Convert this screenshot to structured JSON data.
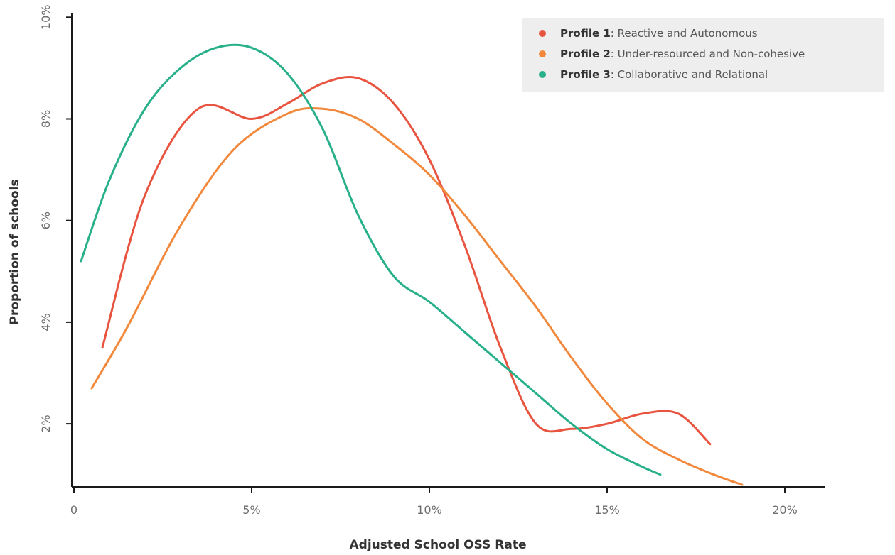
{
  "chart_data": {
    "type": "line",
    "xlabel": "Adjusted School OSS Rate",
    "ylabel": "Proportion of schools",
    "xlim": [
      0,
      20.5
    ],
    "ylim": [
      0.8,
      10
    ],
    "x_ticks": [
      {
        "value": 0,
        "label": "0"
      },
      {
        "value": 5,
        "label": "5%"
      },
      {
        "value": 10,
        "label": "10%"
      },
      {
        "value": 15,
        "label": "15%"
      },
      {
        "value": 20,
        "label": "20%"
      }
    ],
    "y_ticks": [
      {
        "value": 2,
        "label": "2%"
      },
      {
        "value": 4,
        "label": "4%"
      },
      {
        "value": 6,
        "label": "6%"
      },
      {
        "value": 8,
        "label": "8%"
      },
      {
        "value": 10,
        "label": "10%"
      }
    ],
    "grid": false,
    "legend_position": "top-right",
    "series": [
      {
        "name_bold": "Profile 1",
        "name_rest": ": Reactive and Autonomous",
        "color": "#e8543f",
        "points": [
          [
            0.8,
            3.5
          ],
          [
            2.0,
            6.5
          ],
          [
            3.5,
            8.2
          ],
          [
            5.0,
            8.0
          ],
          [
            6.0,
            8.3
          ],
          [
            7.0,
            8.7
          ],
          [
            8.0,
            8.8
          ],
          [
            9.0,
            8.3
          ],
          [
            10.0,
            7.2
          ],
          [
            11.0,
            5.5
          ],
          [
            12.0,
            3.5
          ],
          [
            13.0,
            2.0
          ],
          [
            14.0,
            1.9
          ],
          [
            15.0,
            2.0
          ],
          [
            16.0,
            2.2
          ],
          [
            17.0,
            2.2
          ],
          [
            17.9,
            1.6
          ]
        ]
      },
      {
        "name_bold": "Profile 2",
        "name_rest": ": Under-resourced and Non-cohesive",
        "color": "#f2883b",
        "points": [
          [
            0.5,
            2.7
          ],
          [
            1.5,
            3.9
          ],
          [
            3.0,
            5.9
          ],
          [
            4.5,
            7.4
          ],
          [
            6.0,
            8.1
          ],
          [
            7.0,
            8.2
          ],
          [
            8.0,
            8.0
          ],
          [
            9.0,
            7.5
          ],
          [
            10.0,
            6.9
          ],
          [
            11.0,
            6.1
          ],
          [
            12.0,
            5.2
          ],
          [
            13.0,
            4.3
          ],
          [
            14.0,
            3.3
          ],
          [
            15.0,
            2.4
          ],
          [
            16.0,
            1.7
          ],
          [
            17.0,
            1.3
          ],
          [
            18.0,
            1.0
          ],
          [
            18.8,
            0.8
          ]
        ]
      },
      {
        "name_bold": "Profile 3",
        "name_rest": ": Collaborative and Relational",
        "color": "#27b08a",
        "points": [
          [
            0.2,
            5.2
          ],
          [
            1.0,
            6.8
          ],
          [
            2.0,
            8.2
          ],
          [
            3.0,
            9.0
          ],
          [
            4.0,
            9.4
          ],
          [
            5.0,
            9.4
          ],
          [
            6.0,
            8.9
          ],
          [
            7.0,
            7.8
          ],
          [
            8.0,
            6.1
          ],
          [
            9.0,
            4.9
          ],
          [
            10.0,
            4.4
          ],
          [
            11.0,
            3.8
          ],
          [
            12.0,
            3.2
          ],
          [
            13.0,
            2.6
          ],
          [
            14.0,
            2.0
          ],
          [
            15.0,
            1.5
          ],
          [
            16.0,
            1.15
          ],
          [
            16.5,
            1.0
          ]
        ]
      }
    ]
  }
}
